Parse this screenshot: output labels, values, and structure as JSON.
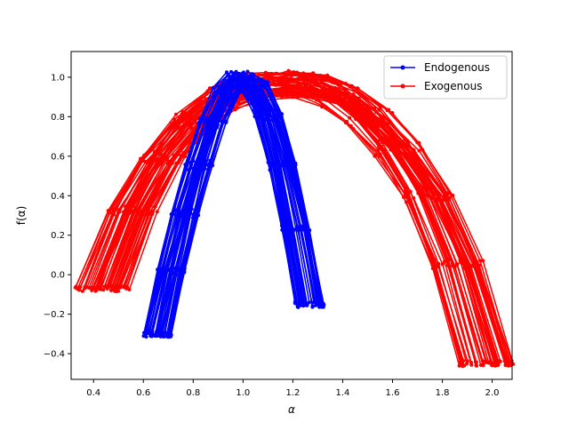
{
  "chart_data": {
    "type": "line",
    "title": "",
    "xlabel": "α",
    "ylabel": "f(α)",
    "xlim": [
      0.31,
      2.08
    ],
    "ylim": [
      -0.53,
      1.13
    ],
    "xticks": [
      0.4,
      0.6,
      0.8,
      1.0,
      1.2,
      1.4,
      1.6,
      1.8,
      2.0
    ],
    "xtick_labels": [
      "0.4",
      "0.6",
      "0.8",
      "1.0",
      "1.2",
      "1.4",
      "1.6",
      "1.8",
      "2.0"
    ],
    "yticks": [
      -0.4,
      -0.2,
      0.0,
      0.2,
      0.4,
      0.6,
      0.8,
      1.0
    ],
    "ytick_labels": [
      "−0.4",
      "−0.2",
      "0.0",
      "0.2",
      "0.4",
      "0.6",
      "0.8",
      "1.0"
    ],
    "grid": false,
    "legend_position": "top-right",
    "series": [
      {
        "name": "Endogenous",
        "color": "#0000ff",
        "marker": "circle",
        "values": [
          [
            0.63,
            -0.3
          ],
          [
            0.66,
            -0.14
          ],
          [
            0.7,
            0.08
          ],
          [
            0.74,
            0.27
          ],
          [
            0.78,
            0.45
          ],
          [
            0.82,
            0.61
          ],
          [
            0.86,
            0.75
          ],
          [
            0.9,
            0.87
          ],
          [
            0.94,
            0.95
          ],
          [
            0.98,
            1.0
          ],
          [
            1.02,
            0.99
          ],
          [
            1.06,
            0.93
          ],
          [
            1.1,
            0.82
          ],
          [
            1.14,
            0.66
          ],
          [
            1.18,
            0.46
          ],
          [
            1.22,
            0.24
          ],
          [
            1.26,
            0.02
          ],
          [
            1.28,
            -0.15
          ]
        ]
      },
      {
        "name": "Exogenous",
        "color": "#ff0000",
        "marker": "circle",
        "values": [
          [
            0.39,
            -0.07
          ],
          [
            0.45,
            0.15
          ],
          [
            0.52,
            0.34
          ],
          [
            0.6,
            0.52
          ],
          [
            0.68,
            0.66
          ],
          [
            0.76,
            0.78
          ],
          [
            0.85,
            0.87
          ],
          [
            0.95,
            0.93
          ],
          [
            1.05,
            0.96
          ],
          [
            1.15,
            0.97
          ],
          [
            1.25,
            0.96
          ],
          [
            1.35,
            0.93
          ],
          [
            1.45,
            0.86
          ],
          [
            1.55,
            0.75
          ],
          [
            1.65,
            0.6
          ],
          [
            1.75,
            0.41
          ],
          [
            1.85,
            0.15
          ],
          [
            1.93,
            -0.15
          ],
          [
            2.0,
            -0.45
          ]
        ]
      }
    ]
  }
}
